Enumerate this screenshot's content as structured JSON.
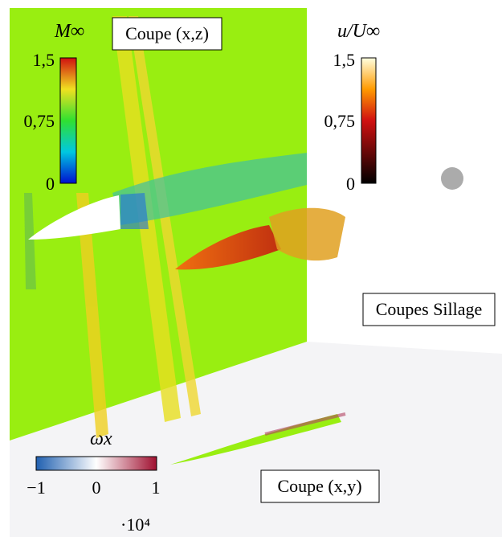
{
  "boxes": {
    "xz": "Coupe (x,z)",
    "wake": "Coupes Sillage",
    "xy": "Coupe (x,y)"
  },
  "colorbars": [
    {
      "symbol": "M∞",
      "ticks": [
        "1,5",
        "0,75",
        "0"
      ]
    },
    {
      "symbol": "u/U∞",
      "ticks": [
        "1,5",
        "0,75",
        "0"
      ]
    },
    {
      "symbol": "ωx",
      "ticks": [
        "−1",
        "0",
        "1"
      ],
      "multiplier": "·10⁴"
    }
  ]
}
